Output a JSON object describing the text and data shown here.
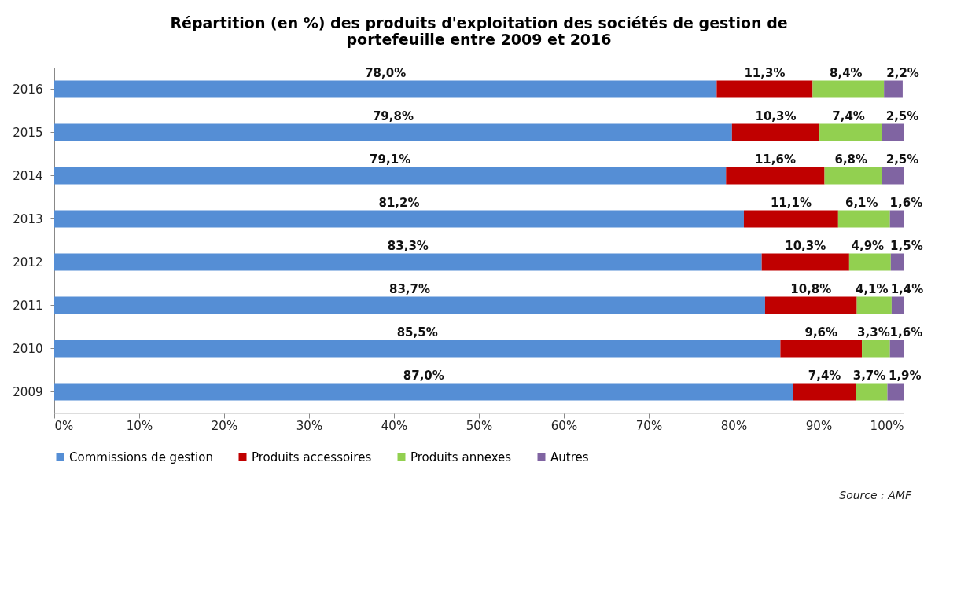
{
  "chart_data": {
    "type": "bar",
    "orientation": "horizontal",
    "stacked": true,
    "title": "Répartition (en %) des produits d'exploitation des sociétés de gestion de portefeuille entre 2009 et 2016",
    "categories": [
      "2016",
      "2015",
      "2014",
      "2013",
      "2012",
      "2011",
      "2010",
      "2009"
    ],
    "series": [
      {
        "name": "Commissions de gestion",
        "color": "#558ed5",
        "values": [
          78.0,
          79.8,
          79.1,
          81.2,
          83.3,
          83.7,
          85.5,
          87.0
        ],
        "value_labels": [
          "78,0%",
          "79,8%",
          "79,1%",
          "81,2%",
          "83,3%",
          "83,7%",
          "85,5%",
          "87,0%"
        ]
      },
      {
        "name": "Produits accessoires",
        "color": "#c00000",
        "values": [
          11.3,
          10.3,
          11.6,
          11.1,
          10.3,
          10.8,
          9.6,
          7.4
        ],
        "value_labels": [
          "11,3%",
          "10,3%",
          "11,6%",
          "11,1%",
          "10,3%",
          "10,8%",
          "9,6%",
          "7,4%"
        ]
      },
      {
        "name": "Produits annexes",
        "color": "#92d050",
        "values": [
          8.4,
          7.4,
          6.8,
          6.1,
          4.9,
          4.1,
          3.3,
          3.7
        ],
        "value_labels": [
          "8,4%",
          "7,4%",
          "6,8%",
          "6,1%",
          "4,9%",
          "4,1%",
          "3,3%",
          "3,7%"
        ]
      },
      {
        "name": "Autres",
        "color": "#8064a2",
        "values": [
          2.2,
          2.5,
          2.5,
          1.6,
          1.5,
          1.4,
          1.6,
          1.9
        ],
        "value_labels": [
          "2,2%",
          "2,5%",
          "2,5%",
          "1,6%",
          "1,5%",
          "1,4%",
          "1,6%",
          "1,9%"
        ]
      }
    ],
    "xlim": [
      0,
      100
    ],
    "xticks": [
      {
        "value": 0,
        "label": "0%"
      },
      {
        "value": 10,
        "label": "10%"
      },
      {
        "value": 20,
        "label": "20%"
      },
      {
        "value": 30,
        "label": "30%"
      },
      {
        "value": 40,
        "label": "40%"
      },
      {
        "value": 50,
        "label": "50%"
      },
      {
        "value": 60,
        "label": "60%"
      },
      {
        "value": 70,
        "label": "70%"
      },
      {
        "value": 80,
        "label": "80%"
      },
      {
        "value": 90,
        "label": "90%"
      },
      {
        "value": 100,
        "label": "100%"
      }
    ],
    "grid": false,
    "legend": "bottom",
    "annotations": [
      "Source : AMF"
    ]
  }
}
